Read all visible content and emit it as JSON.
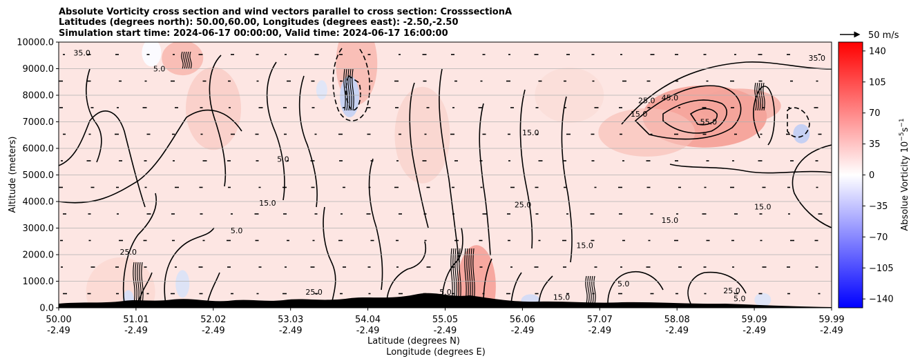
{
  "chart_data": {
    "type": "heatmap",
    "title_lines": [
      "Absolute Vorticity cross section and wind vectors parallel to cross section: CrosssectionA",
      "Latitudes (degrees north): 50.00,60.00, Longitudes (degrees east): -2.50,-2.50",
      "Simulation start time: 2024-06-17 00:00:00, Valid time: 2024-06-17 16:00:00"
    ],
    "xlabel_lat": "Latitude (degrees N)",
    "xlabel_lon": "Longitude (degrees E)",
    "ylabel": "Altitude (meters)",
    "x_ticks": [
      {
        "lat": "50.00",
        "lon": "-2.49"
      },
      {
        "lat": "51.01",
        "lon": "-2.49"
      },
      {
        "lat": "52.02",
        "lon": "-2.49"
      },
      {
        "lat": "53.03",
        "lon": "-2.49"
      },
      {
        "lat": "54.04",
        "lon": "-2.49"
      },
      {
        "lat": "55.05",
        "lon": "-2.49"
      },
      {
        "lat": "56.06",
        "lon": "-2.49"
      },
      {
        "lat": "57.07",
        "lon": "-2.49"
      },
      {
        "lat": "58.08",
        "lon": "-2.49"
      },
      {
        "lat": "59.09",
        "lon": "-2.49"
      },
      {
        "lat": "59.99",
        "lon": "-2.49"
      }
    ],
    "x_range": [
      50.0,
      59.99
    ],
    "y_ticks": [
      "0.0",
      "1000.0",
      "2000.0",
      "3000.0",
      "4000.0",
      "5000.0",
      "6000.0",
      "7000.0",
      "8000.0",
      "9000.0",
      "10000.0"
    ],
    "y_range": [
      0,
      10000
    ],
    "grid": "horizontal",
    "colorbar": {
      "label": "Absolue Vorticity 10",
      "label_exp": "−5",
      "label_unit": "s",
      "label_unit_exp": "−1",
      "ticks": [
        "140",
        "105",
        "70",
        "35",
        "0",
        "−35",
        "−70",
        "−105",
        "−140"
      ],
      "tick_values": [
        140,
        105,
        70,
        35,
        0,
        -35,
        -70,
        -105,
        -140
      ],
      "range": [
        -150,
        150
      ],
      "colormap": "bwr",
      "color_min": "#0000ff",
      "color_mid": "#ffffff",
      "color_max": "#ff0000"
    },
    "quiver_key": {
      "label": "50 m/s",
      "value": 50
    },
    "contour_labels": [
      {
        "text": "15.0",
        "lat": 57.5,
        "alt": 7200
      },
      {
        "text": "25.0",
        "lat": 57.6,
        "alt": 7700
      },
      {
        "text": "45.0",
        "lat": 57.9,
        "alt": 7800
      },
      {
        "text": "55.0",
        "lat": 58.4,
        "alt": 6900
      },
      {
        "text": "35.0",
        "lat": 59.8,
        "alt": 9300
      },
      {
        "text": "15.0",
        "lat": 56.1,
        "alt": 6500
      },
      {
        "text": "5.0",
        "lat": 52.9,
        "alt": 5500
      },
      {
        "text": "15.0",
        "lat": 52.7,
        "alt": 3850
      },
      {
        "text": "25.0",
        "lat": 56.0,
        "alt": 3780
      },
      {
        "text": "15.0",
        "lat": 59.1,
        "alt": 3700
      },
      {
        "text": "15.0",
        "lat": 57.9,
        "alt": 3200
      },
      {
        "text": "15.0",
        "lat": 56.8,
        "alt": 2250
      },
      {
        "text": "25.0",
        "lat": 50.9,
        "alt": 2000
      },
      {
        "text": "5.0",
        "lat": 52.3,
        "alt": 2800
      },
      {
        "text": "25.0",
        "lat": 53.3,
        "alt": 500
      },
      {
        "text": "25.0",
        "lat": 58.7,
        "alt": 550
      },
      {
        "text": "5.0",
        "lat": 57.3,
        "alt": 800
      },
      {
        "text": "15.0",
        "lat": 56.5,
        "alt": 300
      },
      {
        "text": "5.0",
        "lat": 55.0,
        "alt": 500
      },
      {
        "text": "35.0",
        "lat": 50.3,
        "alt": 9500
      },
      {
        "text": "5.0",
        "lat": 51.3,
        "alt": 8900
      },
      {
        "text": "5.0",
        "lat": 58.8,
        "alt": 250
      }
    ]
  }
}
